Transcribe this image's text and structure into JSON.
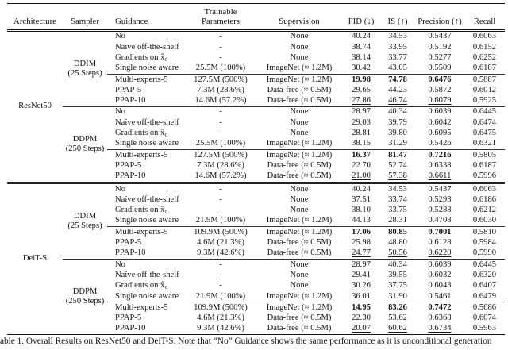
{
  "table": {
    "headers": {
      "architecture": "Architecture",
      "sampler": "Sampler",
      "guidance": "Guidance",
      "trainable_line1": "Trainable",
      "trainable_line2": "Parameters",
      "supervision": "Supervision",
      "fid": "FID (↓)",
      "is": "IS (↑)",
      "precision": "Precision (↑)",
      "recall": "Recall"
    },
    "architectures": [
      {
        "name": "ResNet50",
        "samplers": [
          {
            "name_line1": "DDIM",
            "name_line2": "(25 Steps)",
            "rows": [
              {
                "guidance": "No",
                "params": "-",
                "supervision": "None",
                "fid": "40.24",
                "is": "34.53",
                "precision": "0.5437",
                "recall": "0.6063",
                "emphasis": "none",
                "rule_above": false
              },
              {
                "guidance": "Naïve off-the-shelf",
                "params": "-",
                "supervision": "None",
                "fid": "38.74",
                "is": "33.95",
                "precision": "0.5192",
                "recall": "0.6152",
                "emphasis": "none",
                "rule_above": false
              },
              {
                "guidance": "Gradients on x̂₀",
                "params": "-",
                "supervision": "None",
                "fid": "38.14",
                "is": "33.77",
                "precision": "0.5277",
                "recall": "0.6252",
                "emphasis": "none",
                "rule_above": false
              },
              {
                "guidance": "Single noise aware",
                "params": "25.5M (100%)",
                "supervision": "ImageNet (≈ 1.2M)",
                "fid": "30.42",
                "is": "43.05",
                "precision": "0.5509",
                "recall": "0.6187",
                "emphasis": "none",
                "rule_above": false
              },
              {
                "guidance": "Multi-experts-5",
                "params": "127.5M (500%)",
                "supervision": "ImageNet (≈ 1.2M)",
                "fid": "19.98",
                "is": "74.78",
                "precision": "0.6476",
                "recall": "0.5887",
                "emphasis": "bold",
                "rule_above": true
              },
              {
                "guidance": "PPAP-5",
                "params": "7.3M (28.6%)",
                "supervision": "Data-free (≈ 0.5M)",
                "fid": "29.65",
                "is": "44.23",
                "precision": "0.5872",
                "recall": "0.6012",
                "emphasis": "none",
                "rule_above": false
              },
              {
                "guidance": "PPAP-10",
                "params": "14.6M (57.2%)",
                "supervision": "Data-free (≈ 0.5M)",
                "fid": "27.86",
                "is": "46.74",
                "precision": "0.6079",
                "recall": "0.5925",
                "emphasis": "underline",
                "rule_above": false
              }
            ]
          },
          {
            "name_line1": "DDPM",
            "name_line2": "(250 Steps)",
            "rows": [
              {
                "guidance": "No",
                "params": "-",
                "supervision": "None",
                "fid": "28.97",
                "is": "40.34",
                "precision": "0.6039",
                "recall": "0.6445",
                "emphasis": "none",
                "rule_above": false
              },
              {
                "guidance": "Naïve off-the-shelf",
                "params": "-",
                "supervision": "None",
                "fid": "29.03",
                "is": "39.79",
                "precision": "0.6042",
                "recall": "0.6474",
                "emphasis": "none",
                "rule_above": false
              },
              {
                "guidance": "Gradients on x̂₀",
                "params": "-",
                "supervision": "None",
                "fid": "28.81",
                "is": "39.80",
                "precision": "0.6095",
                "recall": "0.6475",
                "emphasis": "none",
                "rule_above": false
              },
              {
                "guidance": "Single noise aware",
                "params": "25.5M (100%)",
                "supervision": "ImageNet (≈ 1.2M)",
                "fid": "38.15",
                "is": "31.29",
                "precision": "0.5426",
                "recall": "0.6321",
                "emphasis": "none",
                "rule_above": false
              },
              {
                "guidance": "Multi-experts-5",
                "params": "127.5M (500%)",
                "supervision": "ImageNet (≈ 1.2M)",
                "fid": "16.37",
                "is": "81.47",
                "precision": "0.7216",
                "recall": "0.5805",
                "emphasis": "bold",
                "rule_above": true
              },
              {
                "guidance": "PPAP-5",
                "params": "7.3M (28.6%)",
                "supervision": "Data-free (≈ 0.5M)",
                "fid": "22.70",
                "is": "52.74",
                "precision": "0.6338",
                "recall": "0.6187",
                "emphasis": "none",
                "rule_above": false
              },
              {
                "guidance": "PPAP-10",
                "params": "14.6M (57.2%)",
                "supervision": "Data-free (≈ 0.5M)",
                "fid": "21.00",
                "is": "57.38",
                "precision": "0.6611",
                "recall": "0.5996",
                "emphasis": "underline",
                "rule_above": false
              }
            ]
          }
        ]
      },
      {
        "name": "DeiT-S",
        "samplers": [
          {
            "name_line1": "DDIM",
            "name_line2": "(25 Steps)",
            "rows": [
              {
                "guidance": "No",
                "params": "-",
                "supervision": "None",
                "fid": "40.24",
                "is": "34.53",
                "precision": "0.5437",
                "recall": "0.6063",
                "emphasis": "none",
                "rule_above": false
              },
              {
                "guidance": "Naïve off-the-shelf",
                "params": "-",
                "supervision": "None",
                "fid": "37.51",
                "is": "33.74",
                "precision": "0.5293",
                "recall": "0.6186",
                "emphasis": "none",
                "rule_above": false
              },
              {
                "guidance": "Gradients on x̂₀",
                "params": "-",
                "supervision": "None",
                "fid": "38.10",
                "is": "33.75",
                "precision": "0.5288",
                "recall": "0.6212",
                "emphasis": "none",
                "rule_above": false
              },
              {
                "guidance": "Single noise aware",
                "params": "21.9M (100%)",
                "supervision": "ImageNet (≈ 1.2M)",
                "fid": "44.13",
                "is": "28.31",
                "precision": "0.4708",
                "recall": "0.6030",
                "emphasis": "none",
                "rule_above": false
              },
              {
                "guidance": "Multi-experts-5",
                "params": "109.9M (500%)",
                "supervision": "ImageNet (≈ 1.2M)",
                "fid": "17.06",
                "is": "80.85",
                "precision": "0.7001",
                "recall": "0.5810",
                "emphasis": "bold",
                "rule_above": true
              },
              {
                "guidance": "PPAP-5",
                "params": "4.6M (21.3%)",
                "supervision": "Data-free (≈ 0.5M)",
                "fid": "25.98",
                "is": "48.80",
                "precision": "0.6128",
                "recall": "0.5984",
                "emphasis": "none",
                "rule_above": false
              },
              {
                "guidance": "PPAP-10",
                "params": "9.3M (42.6%)",
                "supervision": "Data-free (≈ 0.5M)",
                "fid": "24.77",
                "is": "50.56",
                "precision": "0.6220",
                "recall": "0.5990",
                "emphasis": "underline",
                "rule_above": false
              }
            ]
          },
          {
            "name_line1": "DDPM",
            "name_line2": "(250 Steps)",
            "rows": [
              {
                "guidance": "No",
                "params": "-",
                "supervision": "None",
                "fid": "28.97",
                "is": "40.34",
                "precision": "0.6039",
                "recall": "0.6445",
                "emphasis": "none",
                "rule_above": false
              },
              {
                "guidance": "Naïve off-the-shelf",
                "params": "-",
                "supervision": "None",
                "fid": "29.41",
                "is": "39.55",
                "precision": "0.6032",
                "recall": "0.6320",
                "emphasis": "none",
                "rule_above": false
              },
              {
                "guidance": "Gradients on x̂₀",
                "params": "-",
                "supervision": "None",
                "fid": "30.26",
                "is": "37.75",
                "precision": "0.6043",
                "recall": "0.6407",
                "emphasis": "none",
                "rule_above": false
              },
              {
                "guidance": "Single noise aware",
                "params": "21.9M (100%)",
                "supervision": "ImageNet (≈ 1.2M)",
                "fid": "36.01",
                "is": "31.90",
                "precision": "0.5461",
                "recall": "0.6479",
                "emphasis": "none",
                "rule_above": false
              },
              {
                "guidance": "Multi-experts-5",
                "params": "109.9M (500%)",
                "supervision": "ImageNet (≈ 1.2M)",
                "fid": "14.95",
                "is": "83.26",
                "precision": "0.7472",
                "recall": "0.5686",
                "emphasis": "bold",
                "rule_above": true
              },
              {
                "guidance": "PPAP-5",
                "params": "4.6M (21.3%)",
                "supervision": "Data-free (≈ 0.5M)",
                "fid": "22.30",
                "is": "53.62",
                "precision": "0.6368",
                "recall": "0.6074",
                "emphasis": "none",
                "rule_above": false
              },
              {
                "guidance": "PPAP-10",
                "params": "9.3M (42.6%)",
                "supervision": "Data-free (≈ 0.5M)",
                "fid": "20.07",
                "is": "60.62",
                "precision": "0.6734",
                "recall": "0.5963",
                "emphasis": "underline",
                "rule_above": false
              }
            ]
          }
        ]
      }
    ],
    "caption": "able 1. Overall Results on ResNet50 and DeiT-S. Note that “No” Guidance shows the same performance as it is unconditional generation"
  }
}
